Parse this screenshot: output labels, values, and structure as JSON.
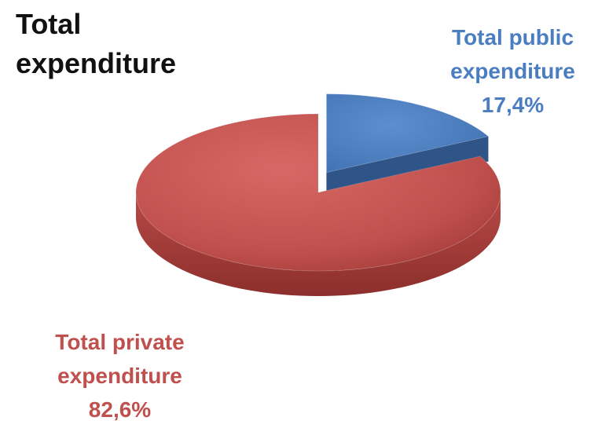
{
  "chart_data": {
    "type": "pie",
    "title": "Total expenditure",
    "slices": [
      {
        "label_line1": "Total public",
        "label_line2": "expenditure",
        "value_label": "17,4%",
        "value": 17.4,
        "color": "#4a7ec0",
        "exploded": true
      },
      {
        "label_line1": "Total private",
        "label_line2": "expenditure",
        "value_label": "82,6%",
        "value": 82.6,
        "color": "#c0504d",
        "exploded": false
      }
    ],
    "style": "3d"
  }
}
